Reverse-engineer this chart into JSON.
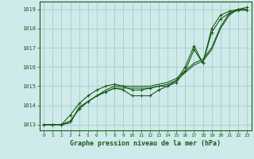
{
  "title": "Graphe pression niveau de la mer (hPa)",
  "background_color": "#ceeaea",
  "grid_color": "#b0d0d0",
  "line_color": "#1a5c1a",
  "x_ticks": [
    0,
    1,
    2,
    3,
    4,
    5,
    6,
    7,
    8,
    9,
    10,
    11,
    12,
    13,
    14,
    15,
    16,
    17,
    18,
    19,
    20,
    21,
    22,
    23
  ],
  "ylim": [
    1012.7,
    1019.4
  ],
  "yticks": [
    1013,
    1014,
    1015,
    1016,
    1017,
    1018,
    1019
  ],
  "series_smooth": [
    [
      1013.0,
      1013.0,
      1013.0,
      1013.1,
      1013.9,
      1014.2,
      1014.5,
      1014.8,
      1015.0,
      1015.0,
      1015.0,
      1015.0,
      1015.0,
      1015.1,
      1015.2,
      1015.4,
      1015.8,
      1016.2,
      1016.4,
      1017.0,
      1018.1,
      1018.8,
      1019.0,
      1019.0
    ],
    [
      1013.0,
      1013.0,
      1013.0,
      1013.1,
      1013.9,
      1014.2,
      1014.5,
      1014.7,
      1014.9,
      1014.9,
      1014.9,
      1014.9,
      1014.9,
      1015.0,
      1015.1,
      1015.3,
      1015.7,
      1016.1,
      1016.3,
      1016.9,
      1018.0,
      1018.7,
      1019.0,
      1019.0
    ]
  ],
  "series_marked": [
    [
      1013.0,
      1013.0,
      1013.0,
      1013.5,
      1014.1,
      1014.5,
      1014.8,
      1015.0,
      1015.1,
      1015.0,
      1014.8,
      1014.8,
      1014.9,
      1015.0,
      1015.0,
      1015.3,
      1016.0,
      1017.1,
      1016.2,
      1018.0,
      1018.7,
      1018.9,
      1019.0,
      1019.1
    ],
    [
      1013.0,
      1013.0,
      1013.0,
      1013.2,
      1013.8,
      1014.2,
      1014.5,
      1014.7,
      1014.9,
      1014.8,
      1014.5,
      1014.5,
      1014.5,
      1014.8,
      1015.0,
      1015.2,
      1015.8,
      1016.9,
      1016.2,
      1017.8,
      1018.5,
      1018.8,
      1018.95,
      1018.95
    ]
  ]
}
